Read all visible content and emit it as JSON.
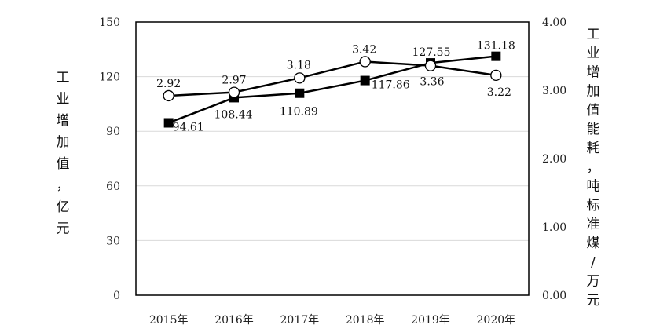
{
  "chart_data": {
    "type": "line",
    "categories": [
      "2015年",
      "2016年",
      "2017年",
      "2018年",
      "2019年",
      "2020年"
    ],
    "series": [
      {
        "axis": "left",
        "marker": "filled-square",
        "values": [
          94.61,
          108.44,
          110.89,
          117.86,
          127.55,
          131.18
        ]
      },
      {
        "axis": "right",
        "marker": "hollow-circle",
        "values": [
          2.92,
          2.97,
          3.18,
          3.42,
          3.36,
          3.22
        ]
      }
    ],
    "data_labels": {
      "left": [
        "94.61",
        "108.44",
        "110.89",
        "117.86",
        "127.55",
        "131.18"
      ],
      "right": [
        "2.92",
        "2.97",
        "3.18",
        "3.42",
        "3.36",
        "3.22"
      ]
    },
    "ylabel": "工业增加值，亿元",
    "y2label": "工业增加值能耗，吨标准煤/万元",
    "ylim": [
      0,
      150
    ],
    "y2lim": [
      0,
      4
    ],
    "yticks": [
      "0",
      "30",
      "60",
      "90",
      "120",
      "150"
    ],
    "y2ticks": [
      "0.00",
      "1.00",
      "2.00",
      "3.00",
      "4.00"
    ],
    "grid": true,
    "legend": "none",
    "colors": {
      "line": "#000000",
      "grid": "#d9d9d9",
      "frame": "#000000"
    }
  }
}
